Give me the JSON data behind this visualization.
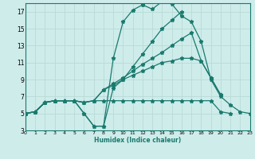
{
  "bg_color": "#ceecea",
  "line_color": "#1a7a6e",
  "grid_color": "#b8dbd8",
  "xlabel": "Humidex (Indice chaleur)",
  "xlim": [
    0,
    23
  ],
  "ylim": [
    3,
    18
  ],
  "xticks": [
    0,
    1,
    2,
    3,
    4,
    5,
    6,
    7,
    8,
    9,
    10,
    11,
    12,
    13,
    14,
    15,
    16,
    17,
    18,
    19,
    20,
    21,
    22,
    23
  ],
  "yticks": [
    3,
    5,
    7,
    9,
    11,
    13,
    15,
    17
  ],
  "x_vals": [
    0,
    1,
    2,
    3,
    4,
    5,
    6,
    7,
    8,
    9,
    10,
    11,
    12,
    13,
    14,
    15,
    16,
    17,
    18,
    19,
    20,
    21,
    22,
    23
  ],
  "y_sets": [
    [
      5.0,
      5.2,
      6.3,
      6.5,
      6.5,
      6.5,
      5.0,
      3.5,
      3.5,
      11.5,
      15.8,
      17.2,
      17.8,
      17.3,
      18.2,
      17.9,
      16.5,
      15.8,
      13.5,
      9.0,
      7.0,
      6.0,
      5.2,
      5.0
    ],
    [
      5.0,
      5.2,
      6.3,
      6.5,
      6.5,
      6.5,
      5.0,
      3.5,
      3.5,
      8.0,
      9.0,
      9.5,
      10.0,
      10.5,
      11.0,
      11.2,
      11.5,
      11.5,
      11.2,
      9.2,
      7.2,
      null,
      null,
      null
    ],
    [
      5.0,
      5.2,
      6.3,
      6.5,
      6.5,
      6.5,
      6.3,
      6.5,
      7.8,
      8.5,
      9.2,
      10.0,
      10.8,
      11.5,
      12.2,
      13.0,
      13.8,
      14.5,
      11.2,
      9.2,
      7.2,
      null,
      null,
      null
    ],
    [
      5.0,
      5.2,
      6.3,
      6.5,
      6.5,
      6.5,
      6.3,
      6.5,
      7.8,
      8.3,
      9.0,
      10.5,
      12.0,
      13.5,
      15.0,
      16.0,
      17.0,
      null,
      null,
      null,
      null,
      null,
      null,
      null
    ],
    [
      5.0,
      5.2,
      6.3,
      6.5,
      6.5,
      6.5,
      6.3,
      6.5,
      6.5,
      6.5,
      6.5,
      6.5,
      6.5,
      6.5,
      6.5,
      6.5,
      6.5,
      6.5,
      6.5,
      6.5,
      5.2,
      5.0,
      null,
      null
    ]
  ],
  "lw": 0.9,
  "ms": 3.5
}
